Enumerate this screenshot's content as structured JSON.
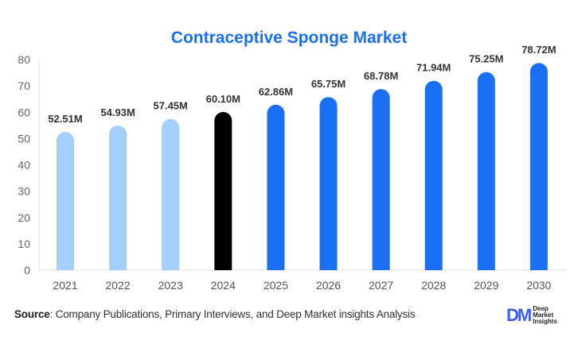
{
  "chart_data": {
    "type": "bar",
    "title": "Contraceptive Sponge Market",
    "categories": [
      "2021",
      "2022",
      "2023",
      "2024",
      "2025",
      "2026",
      "2027",
      "2028",
      "2029",
      "2030"
    ],
    "values": [
      52.51,
      54.93,
      57.45,
      60.1,
      62.86,
      65.75,
      68.78,
      71.94,
      75.25,
      78.72
    ],
    "data_labels": [
      "52.51M",
      "54.93M",
      "57.45M",
      "60.10M",
      "62.86M",
      "65.75M",
      "68.78M",
      "71.94M",
      "75.25M",
      "78.72M"
    ],
    "ylim": [
      0,
      80
    ],
    "yticks": [
      0,
      10,
      20,
      30,
      40,
      50,
      60,
      70,
      80
    ],
    "grid": false,
    "bar_colors": [
      "#a3cffd",
      "#a3cffd",
      "#a3cffd",
      "#000000",
      "#1a6ff5",
      "#1a6ff5",
      "#1a6ff5",
      "#1a6ff5",
      "#1a6ff5",
      "#1a6ff5"
    ]
  },
  "source": {
    "label": "Source",
    "text": ": Company Publications, Primary Interviews, and Deep Market insights Analysis"
  },
  "logo": {
    "mark": "DM",
    "line1": "Deep",
    "line2": "Market",
    "line3": "Insights"
  }
}
